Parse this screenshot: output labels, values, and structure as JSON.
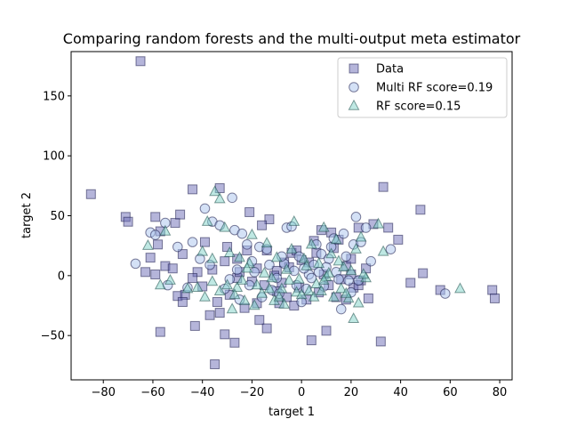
{
  "chart_data": {
    "type": "scatter",
    "title": "Comparing random forests and the multi-output meta estimator",
    "xlabel": "target 1",
    "ylabel": "target 2",
    "xlim": [
      -93,
      85
    ],
    "ylim": [
      -87,
      187
    ],
    "xticks": [
      -80,
      -60,
      -40,
      -20,
      0,
      20,
      40,
      60,
      80
    ],
    "yticks": [
      -50,
      0,
      50,
      100,
      150
    ],
    "legend_position": "top-right",
    "series": [
      {
        "name": "Data",
        "marker": "square",
        "color": "#6b6bb5",
        "edge": "#1a1a4a",
        "points": [
          [
            -65,
            179
          ],
          [
            -85,
            68
          ],
          [
            -71,
            49
          ],
          [
            -70,
            45
          ],
          [
            -59,
            49
          ],
          [
            -57,
            37
          ],
          [
            -51,
            44
          ],
          [
            -44,
            72
          ],
          [
            -33,
            73
          ],
          [
            -49,
            51
          ],
          [
            -48,
            18
          ],
          [
            -58,
            26
          ],
          [
            -61,
            15
          ],
          [
            -63,
            3
          ],
          [
            -59,
            1
          ],
          [
            -55,
            8
          ],
          [
            -52,
            6
          ],
          [
            -50,
            -17
          ],
          [
            -47,
            -16
          ],
          [
            -48,
            -22
          ],
          [
            -42,
            3
          ],
          [
            -57,
            -47
          ],
          [
            -43,
            -42
          ],
          [
            -37,
            -33
          ],
          [
            -35,
            -74
          ],
          [
            -33,
            -31
          ],
          [
            -31,
            -49
          ],
          [
            -27,
            -56
          ],
          [
            -29,
            -16
          ],
          [
            -34,
            -22
          ],
          [
            -26,
            -2
          ],
          [
            -23,
            -27
          ],
          [
            -21,
            53
          ],
          [
            -18,
            -23
          ],
          [
            -17,
            -37
          ],
          [
            -14,
            -44
          ],
          [
            -13,
            47
          ],
          [
            -16,
            42
          ],
          [
            -10,
            -13
          ],
          [
            -9,
            -23
          ],
          [
            -6,
            -18
          ],
          [
            -3,
            -25
          ],
          [
            -1,
            -10
          ],
          [
            2,
            -20
          ],
          [
            4,
            -54
          ],
          [
            10,
            -46
          ],
          [
            14,
            -18
          ],
          [
            18,
            -20
          ],
          [
            21,
            -10
          ],
          [
            24,
            -4
          ],
          [
            27,
            -19
          ],
          [
            29,
            43
          ],
          [
            32,
            -55
          ],
          [
            33,
            74
          ],
          [
            35,
            40
          ],
          [
            39,
            30
          ],
          [
            44,
            -6
          ],
          [
            48,
            55
          ],
          [
            49,
            2
          ],
          [
            56,
            -12
          ],
          [
            77,
            -12
          ],
          [
            78,
            -19
          ],
          [
            -39,
            28
          ],
          [
            -30,
            24
          ],
          [
            -26,
            14
          ],
          [
            -22,
            21
          ],
          [
            -18,
            6
          ],
          [
            -14,
            21
          ],
          [
            -10,
            4
          ],
          [
            -7,
            11
          ],
          [
            -4,
            19
          ],
          [
            -2,
            21
          ],
          [
            3,
            11
          ],
          [
            6,
            19
          ],
          [
            8,
            38
          ],
          [
            9,
            1
          ],
          [
            12,
            36
          ],
          [
            15,
            30
          ],
          [
            18,
            8
          ],
          [
            20,
            1
          ],
          [
            23,
            40
          ],
          [
            26,
            6
          ],
          [
            -36,
            5
          ],
          [
            -31,
            12
          ],
          [
            -25,
            3
          ],
          [
            -20,
            -5
          ],
          [
            -15,
            -8
          ],
          [
            -11,
            0
          ],
          [
            -5,
            7
          ],
          [
            0,
            13
          ],
          [
            5,
            29
          ],
          [
            11,
            -8
          ],
          [
            16,
            -3
          ],
          [
            20,
            14
          ],
          [
            23,
            -8
          ],
          [
            -44,
            -2
          ],
          [
            -40,
            -9
          ],
          [
            -8,
            -6
          ],
          [
            7,
            -14
          ],
          [
            13,
            23
          ]
        ]
      },
      {
        "name": "Multi RF score=0.19",
        "marker": "circle",
        "color": "#aac4ee",
        "edge": "#1a1a4a",
        "points": [
          [
            -67,
            10
          ],
          [
            -61,
            36
          ],
          [
            -59,
            34
          ],
          [
            -55,
            44
          ],
          [
            -54,
            -8
          ],
          [
            -50,
            24
          ],
          [
            -46,
            -10
          ],
          [
            -39,
            56
          ],
          [
            -36,
            45
          ],
          [
            -33,
            42
          ],
          [
            -28,
            65
          ],
          [
            -27,
            38
          ],
          [
            -24,
            35
          ],
          [
            -22,
            26
          ],
          [
            -19,
            3
          ],
          [
            -17,
            24
          ],
          [
            -14,
            22
          ],
          [
            -12,
            -12
          ],
          [
            -9,
            -15
          ],
          [
            -7,
            10
          ],
          [
            -6,
            40
          ],
          [
            -4,
            41
          ],
          [
            -2,
            -8
          ],
          [
            0,
            -22
          ],
          [
            3,
            1
          ],
          [
            5,
            9
          ],
          [
            6,
            26
          ],
          [
            8,
            18
          ],
          [
            11,
            14
          ],
          [
            12,
            24
          ],
          [
            13,
            31
          ],
          [
            14,
            3
          ],
          [
            15,
            -3
          ],
          [
            17,
            35
          ],
          [
            18,
            16
          ],
          [
            20,
            -14
          ],
          [
            21,
            26
          ],
          [
            22,
            49
          ],
          [
            24,
            28
          ],
          [
            26,
            40
          ],
          [
            28,
            12
          ],
          [
            36,
            22
          ],
          [
            58,
            -15
          ],
          [
            -41,
            14
          ],
          [
            -37,
            9
          ],
          [
            -31,
            -11
          ],
          [
            -29,
            -3
          ],
          [
            -25,
            -20
          ],
          [
            -21,
            -8
          ],
          [
            -16,
            -18
          ],
          [
            -13,
            9
          ],
          [
            -10,
            -2
          ],
          [
            -8,
            16
          ],
          [
            -3,
            4
          ],
          [
            1,
            6
          ],
          [
            4,
            -2
          ],
          [
            7,
            3
          ],
          [
            9,
            -9
          ],
          [
            10,
            7
          ],
          [
            16,
            -28
          ],
          [
            19,
            -4
          ],
          [
            -44,
            28
          ],
          [
            -26,
            5
          ],
          [
            -20,
            12
          ],
          [
            -1,
            16
          ],
          [
            2,
            -11
          ],
          [
            23,
            -4
          ]
        ]
      },
      {
        "name": "RF score=0.15",
        "marker": "triangle",
        "color": "#7fd1c8",
        "edge": "#1a4a47",
        "points": [
          [
            -62,
            25
          ],
          [
            -57,
            -8
          ],
          [
            -55,
            37
          ],
          [
            -53,
            -4
          ],
          [
            -42,
            -10
          ],
          [
            -40,
            20
          ],
          [
            -38,
            45
          ],
          [
            -36,
            -5
          ],
          [
            -35,
            70
          ],
          [
            -33,
            64
          ],
          [
            -31,
            40
          ],
          [
            -29,
            19
          ],
          [
            -28,
            -28
          ],
          [
            -26,
            -10
          ],
          [
            -24,
            -4
          ],
          [
            -23,
            -21
          ],
          [
            -21,
            10
          ],
          [
            -20,
            34
          ],
          [
            -18,
            -8
          ],
          [
            -16,
            -15
          ],
          [
            -14,
            27
          ],
          [
            -12,
            -2
          ],
          [
            -10,
            15
          ],
          [
            -8,
            -11
          ],
          [
            -6,
            5
          ],
          [
            -4,
            22
          ],
          [
            -3,
            45
          ],
          [
            -1,
            -3
          ],
          [
            1,
            14
          ],
          [
            3,
            -13
          ],
          [
            4,
            26
          ],
          [
            6,
            -7
          ],
          [
            7,
            10
          ],
          [
            9,
            40
          ],
          [
            10,
            -1
          ],
          [
            12,
            18
          ],
          [
            14,
            30
          ],
          [
            16,
            -11
          ],
          [
            17,
            7
          ],
          [
            19,
            -19
          ],
          [
            21,
            -36
          ],
          [
            22,
            22
          ],
          [
            24,
            32
          ],
          [
            26,
            -2
          ],
          [
            31,
            43
          ],
          [
            33,
            20
          ],
          [
            64,
            -11
          ],
          [
            -46,
            -11
          ],
          [
            -39,
            -18
          ],
          [
            -33,
            -13
          ],
          [
            -30,
            -8
          ],
          [
            -27,
            -16
          ],
          [
            -25,
            15
          ],
          [
            -22,
            6
          ],
          [
            -19,
            -25
          ],
          [
            -15,
            2
          ],
          [
            -11,
            -21
          ],
          [
            -9,
            -18
          ],
          [
            -7,
            -24
          ],
          [
            -5,
            -4
          ],
          [
            -2,
            -14
          ],
          [
            0,
            -16
          ],
          [
            2,
            8
          ],
          [
            5,
            -18
          ],
          [
            8,
            -13
          ],
          [
            11,
            2
          ],
          [
            13,
            -18
          ],
          [
            15,
            12
          ],
          [
            18,
            -15
          ],
          [
            20,
            4
          ],
          [
            23,
            -23
          ],
          [
            25,
            1
          ],
          [
            -36,
            14
          ],
          [
            -13,
            -11
          ],
          [
            9,
            -4
          ]
        ]
      }
    ]
  }
}
